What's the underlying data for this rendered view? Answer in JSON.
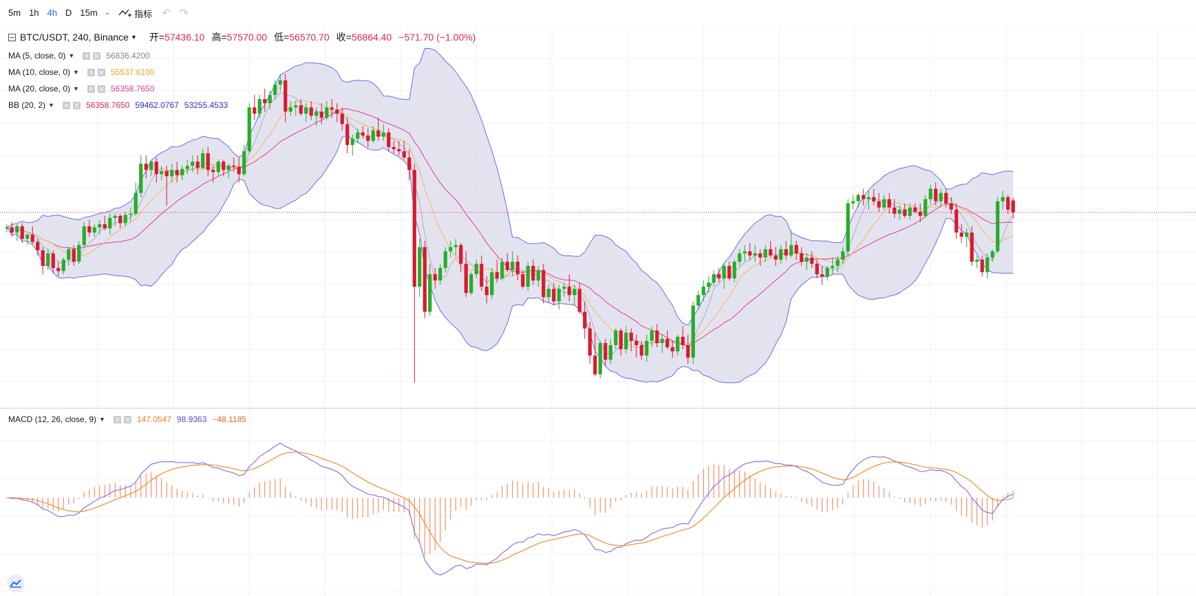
{
  "toolbar": {
    "intervals": [
      "5m",
      "1h",
      "4h",
      "D",
      "15m"
    ],
    "active_interval": "4h",
    "indicators_label": "指标"
  },
  "header": {
    "symbol": "BTC/USDT, 240, Binance",
    "open_label": "开=",
    "open": "57436.10",
    "high_label": "高=",
    "high": "57570.00",
    "low_label": "低=",
    "low": "56570.70",
    "close_label": "收=",
    "close": "56864.40",
    "change": "−571.70 (−1.00%)"
  },
  "legends": {
    "ma5": {
      "label": "MA (5, close, 0)",
      "value": "56836.4200",
      "color": "#7d8794"
    },
    "ma10": {
      "label": "MA (10, close, 0)",
      "value": "55537.6100",
      "color": "#f0a020"
    },
    "ma20": {
      "label": "MA (20, close, 0)",
      "value": "56358.7650",
      "color": "#e23c8c"
    },
    "bb": {
      "label": "BB (20, 2)",
      "values": [
        "56358.7650",
        "59462.0767",
        "53255.4533"
      ],
      "colors": [
        "#e0294a",
        "#2b2bd6",
        "#2b2bd6"
      ]
    },
    "macd": {
      "label": "MACD (12, 26, close, 9)",
      "values": [
        "147.0547",
        "98.9363",
        "−48.1185"
      ],
      "colors": [
        "#f4811f",
        "#6a3fd6",
        "#f4622a"
      ]
    }
  },
  "colors": {
    "up": "#26ad26",
    "down": "#d9192f",
    "bb_fill": "#dcdceb",
    "bb_line": "#6a6ae8",
    "grid": "#eef0f3",
    "price_line": "#e0294a"
  },
  "chart_data": {
    "type": "candlestick",
    "symbol": "BTC/USDT",
    "interval": "240",
    "exchange": "Binance",
    "price_range": [
      47600,
      65800
    ],
    "last_close": 56864.4,
    "ohlc": [
      [
        56100,
        56300,
        55900,
        56150
      ],
      [
        56150,
        56400,
        55700,
        55900
      ],
      [
        55900,
        56300,
        55500,
        56200
      ],
      [
        56200,
        56350,
        55400,
        55600
      ],
      [
        55600,
        55850,
        55300,
        55800
      ],
      [
        55800,
        56200,
        55350,
        55450
      ],
      [
        55450,
        55600,
        54800,
        55050
      ],
      [
        55050,
        55200,
        53900,
        54300
      ],
      [
        54300,
        55100,
        54100,
        54900
      ],
      [
        54900,
        55050,
        53950,
        54200
      ],
      [
        54200,
        54500,
        53800,
        54050
      ],
      [
        54050,
        54700,
        53900,
        54600
      ],
      [
        54600,
        55200,
        54300,
        55100
      ],
      [
        55100,
        55300,
        54300,
        54500
      ],
      [
        54500,
        55500,
        54400,
        55300
      ],
      [
        55300,
        56400,
        55200,
        56200
      ],
      [
        56200,
        56500,
        55700,
        55900
      ],
      [
        55900,
        56300,
        55700,
        56150
      ],
      [
        56150,
        56500,
        55800,
        56300
      ],
      [
        56300,
        56700,
        56000,
        56100
      ],
      [
        56100,
        56800,
        55800,
        56600
      ],
      [
        56600,
        56800,
        56200,
        56700
      ],
      [
        56700,
        56800,
        56100,
        56350
      ],
      [
        56350,
        56900,
        56200,
        56750
      ],
      [
        56750,
        57100,
        56400,
        56800
      ],
      [
        56800,
        58300,
        56700,
        57800
      ],
      [
        57800,
        59600,
        57600,
        59200
      ],
      [
        59200,
        59600,
        58500,
        58900
      ],
      [
        58900,
        59400,
        58600,
        59300
      ],
      [
        59300,
        59500,
        58300,
        58700
      ],
      [
        58700,
        59100,
        58400,
        58850
      ],
      [
        58850,
        59100,
        57200,
        58600
      ],
      [
        58600,
        59200,
        58300,
        58900
      ],
      [
        58900,
        59300,
        58300,
        58650
      ],
      [
        58650,
        59100,
        58400,
        58950
      ],
      [
        58950,
        59400,
        58700,
        59100
      ],
      [
        59100,
        59600,
        58800,
        59300
      ],
      [
        59300,
        59600,
        58700,
        59000
      ],
      [
        59000,
        59900,
        58900,
        59700
      ],
      [
        59700,
        60000,
        58600,
        58900
      ],
      [
        58900,
        59100,
        58300,
        58800
      ],
      [
        58800,
        59400,
        58600,
        59300
      ],
      [
        59300,
        59400,
        58600,
        58900
      ],
      [
        58900,
        59200,
        58500,
        59100
      ],
      [
        59100,
        59500,
        58800,
        59050
      ],
      [
        59050,
        59500,
        58300,
        58700
      ],
      [
        58700,
        60100,
        58600,
        59800
      ],
      [
        59800,
        62100,
        59700,
        61900
      ],
      [
        61900,
        62500,
        61300,
        61600
      ],
      [
        61600,
        62500,
        61400,
        62300
      ],
      [
        62300,
        62800,
        61700,
        62100
      ],
      [
        62100,
        62700,
        61800,
        62500
      ],
      [
        62500,
        63200,
        62300,
        63000
      ],
      [
        63000,
        63500,
        62700,
        63200
      ],
      [
        63200,
        63500,
        61200,
        61700
      ],
      [
        61700,
        62200,
        61500,
        61900
      ],
      [
        61900,
        62200,
        61500,
        62000
      ],
      [
        62000,
        62300,
        61500,
        61600
      ],
      [
        61600,
        62100,
        61200,
        61900
      ],
      [
        61900,
        62200,
        61300,
        61500
      ],
      [
        61500,
        61900,
        61000,
        61700
      ],
      [
        61700,
        62100,
        61100,
        61400
      ],
      [
        61400,
        62200,
        61300,
        61900
      ],
      [
        61900,
        62300,
        61400,
        61800
      ],
      [
        61800,
        62100,
        61200,
        61600
      ],
      [
        61600,
        61900,
        60800,
        61100
      ],
      [
        61100,
        61400,
        59700,
        60100
      ],
      [
        60100,
        60600,
        59600,
        60400
      ],
      [
        60400,
        60900,
        60200,
        60700
      ],
      [
        60700,
        61000,
        60400,
        60550
      ],
      [
        60550,
        60900,
        60000,
        60300
      ],
      [
        60300,
        61000,
        60200,
        60800
      ],
      [
        60800,
        61400,
        60300,
        60500
      ],
      [
        60500,
        61100,
        60300,
        60700
      ],
      [
        60700,
        60900,
        59800,
        60000
      ],
      [
        60000,
        60300,
        59700,
        59900
      ],
      [
        59900,
        60300,
        59600,
        59800
      ],
      [
        59800,
        60300,
        59400,
        59500
      ],
      [
        59500,
        59900,
        58400,
        58900
      ],
      [
        58900,
        59200,
        48700,
        53300
      ],
      [
        53300,
        55600,
        52800,
        55200
      ],
      [
        55200,
        55500,
        51800,
        52100
      ],
      [
        52100,
        54400,
        51900,
        53900
      ],
      [
        53900,
        54200,
        53200,
        53600
      ],
      [
        53600,
        54400,
        53400,
        54200
      ],
      [
        54200,
        55200,
        54000,
        55000
      ],
      [
        55000,
        55500,
        54700,
        55200
      ],
      [
        55200,
        55600,
        54800,
        55300
      ],
      [
        55300,
        55400,
        54000,
        54400
      ],
      [
        54400,
        55000,
        52800,
        53000
      ],
      [
        53000,
        54000,
        52900,
        53900
      ],
      [
        53900,
        54600,
        53700,
        54400
      ],
      [
        54400,
        54800,
        53100,
        53300
      ],
      [
        53300,
        53800,
        52500,
        52900
      ],
      [
        52900,
        54200,
        52700,
        54000
      ],
      [
        54000,
        54600,
        53500,
        53700
      ],
      [
        53700,
        54700,
        53600,
        54500
      ],
      [
        54500,
        54900,
        54000,
        54100
      ],
      [
        54100,
        55000,
        53800,
        54500
      ],
      [
        54500,
        54800,
        53600,
        53900
      ],
      [
        53900,
        54100,
        53200,
        53300
      ],
      [
        53300,
        54500,
        53100,
        54300
      ],
      [
        54300,
        54600,
        53400,
        53600
      ],
      [
        53600,
        54300,
        53300,
        54100
      ],
      [
        54100,
        54400,
        52500,
        52800
      ],
      [
        52800,
        53400,
        52500,
        53200
      ],
      [
        53200,
        53500,
        52400,
        52600
      ],
      [
        52600,
        53400,
        52200,
        53200
      ],
      [
        53200,
        53500,
        52800,
        53300
      ],
      [
        53300,
        53900,
        52600,
        52900
      ],
      [
        52900,
        53400,
        52400,
        53200
      ],
      [
        53200,
        53500,
        52000,
        52100
      ],
      [
        52100,
        52600,
        50800,
        51300
      ],
      [
        51300,
        51600,
        49600,
        50000
      ],
      [
        50000,
        51100,
        49000,
        49100
      ],
      [
        49100,
        50700,
        48900,
        50600
      ],
      [
        50600,
        50800,
        49500,
        49800
      ],
      [
        49800,
        50800,
        49600,
        50500
      ],
      [
        50500,
        51300,
        50300,
        51200
      ],
      [
        51200,
        51300,
        50000,
        50300
      ],
      [
        50300,
        51400,
        50100,
        51100
      ],
      [
        51100,
        51300,
        50200,
        50700
      ],
      [
        50700,
        51000,
        49900,
        50500
      ],
      [
        50500,
        50700,
        49800,
        50000
      ],
      [
        50000,
        51000,
        49700,
        50700
      ],
      [
        50700,
        51400,
        50400,
        51200
      ],
      [
        51200,
        51500,
        50400,
        50600
      ],
      [
        50600,
        51000,
        50100,
        50800
      ],
      [
        50800,
        51200,
        50300,
        50400
      ],
      [
        50400,
        50700,
        49900,
        50200
      ],
      [
        50200,
        51000,
        50000,
        50900
      ],
      [
        50900,
        51400,
        50300,
        50500
      ],
      [
        50500,
        51000,
        49600,
        49900
      ],
      [
        49900,
        52600,
        49600,
        52400
      ],
      [
        52400,
        53100,
        52200,
        52900
      ],
      [
        52900,
        53600,
        52600,
        53300
      ],
      [
        53300,
        53800,
        53000,
        53500
      ],
      [
        53500,
        54100,
        53300,
        53900
      ],
      [
        53900,
        54200,
        53500,
        53700
      ],
      [
        53700,
        54400,
        53200,
        54300
      ],
      [
        54300,
        54500,
        53600,
        53700
      ],
      [
        53700,
        54600,
        53500,
        54500
      ],
      [
        54500,
        55100,
        54300,
        54900
      ],
      [
        54900,
        55300,
        54500,
        55000
      ],
      [
        55000,
        55400,
        54600,
        54800
      ],
      [
        54800,
        55300,
        54500,
        54900
      ],
      [
        54900,
        55100,
        54300,
        54700
      ],
      [
        54700,
        55300,
        54500,
        55100
      ],
      [
        55100,
        55500,
        54700,
        54800
      ],
      [
        54800,
        55200,
        54300,
        54600
      ],
      [
        54600,
        55300,
        54400,
        55100
      ],
      [
        55100,
        55500,
        54600,
        54800
      ],
      [
        54800,
        56000,
        54700,
        55300
      ],
      [
        55300,
        55500,
        54600,
        54900
      ],
      [
        54900,
        55200,
        54300,
        54500
      ],
      [
        54500,
        54900,
        54100,
        54700
      ],
      [
        54700,
        55000,
        54200,
        54400
      ],
      [
        54400,
        54600,
        53700,
        53900
      ],
      [
        53900,
        54300,
        53400,
        53800
      ],
      [
        53800,
        54300,
        53600,
        54200
      ],
      [
        54200,
        54700,
        53900,
        54300
      ],
      [
        54300,
        54800,
        54000,
        54600
      ],
      [
        54600,
        55200,
        54400,
        55000
      ],
      [
        55000,
        57500,
        54800,
        57300
      ],
      [
        57300,
        57700,
        57000,
        57400
      ],
      [
        57400,
        57800,
        57100,
        57700
      ],
      [
        57700,
        58000,
        57200,
        57500
      ],
      [
        57500,
        57900,
        57000,
        57600
      ],
      [
        57600,
        58000,
        57200,
        57400
      ],
      [
        57400,
        57800,
        56900,
        57100
      ],
      [
        57100,
        57700,
        57000,
        57500
      ],
      [
        57500,
        57800,
        56800,
        57100
      ],
      [
        57100,
        57500,
        56600,
        56800
      ],
      [
        56800,
        57200,
        56500,
        57000
      ],
      [
        57000,
        57300,
        56600,
        56700
      ],
      [
        56700,
        57300,
        56500,
        57100
      ],
      [
        57100,
        57300,
        56800,
        56900
      ],
      [
        56900,
        57300,
        56400,
        56700
      ],
      [
        56700,
        57700,
        56600,
        57500
      ],
      [
        57500,
        58200,
        57300,
        58000
      ],
      [
        58000,
        58300,
        57200,
        57400
      ],
      [
        57400,
        58000,
        57100,
        57800
      ],
      [
        57800,
        58000,
        57100,
        57300
      ],
      [
        57300,
        57600,
        56800,
        57000
      ],
      [
        57000,
        57300,
        55600,
        55900
      ],
      [
        55900,
        56300,
        55400,
        55700
      ],
      [
        55700,
        56100,
        55200,
        55900
      ],
      [
        55900,
        56200,
        54300,
        54500
      ],
      [
        54500,
        54800,
        54200,
        54600
      ],
      [
        54600,
        54800,
        53800,
        54000
      ],
      [
        54000,
        54900,
        53700,
        54700
      ],
      [
        54700,
        55100,
        54500,
        55000
      ],
      [
        55000,
        57600,
        54900,
        57400
      ],
      [
        57400,
        57900,
        57000,
        57600
      ],
      [
        57600,
        57700,
        56800,
        57000
      ],
      [
        57436.1,
        57570,
        56570.7,
        56864.4
      ]
    ]
  }
}
